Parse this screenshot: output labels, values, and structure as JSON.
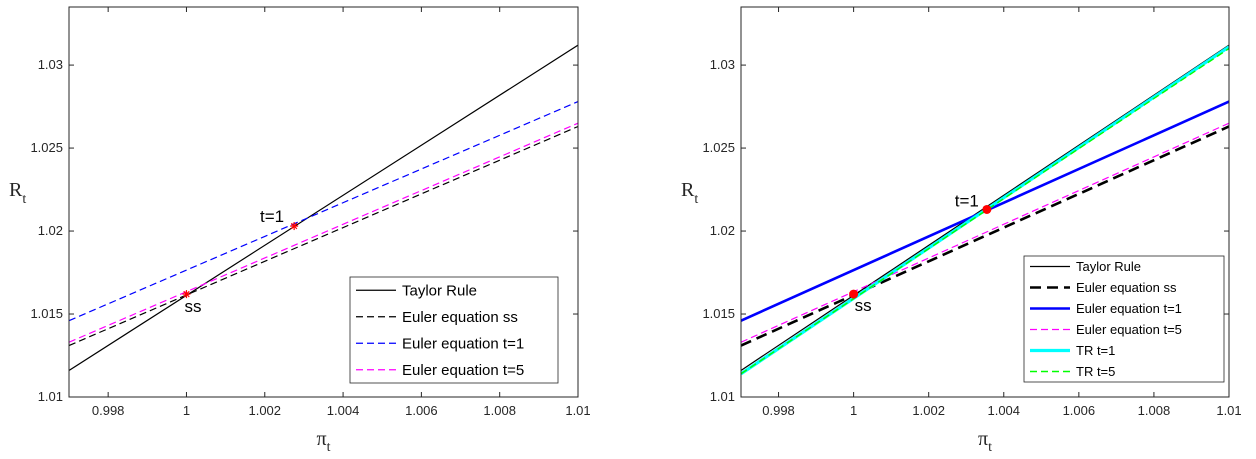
{
  "chart_data": [
    {
      "type": "line",
      "xlabel": "π",
      "xlabel_sub": "t",
      "ylabel": "R",
      "ylabel_sub": "t",
      "xlim": [
        0.997,
        1.01
      ],
      "ylim": [
        1.01,
        1.0335
      ],
      "xticks": [
        0.998,
        1,
        1.002,
        1.004,
        1.006,
        1.008,
        1.01
      ],
      "xtick_labels": [
        "0.998",
        "1",
        "1.002",
        "1.004",
        "1.006",
        "1.008",
        "1.01"
      ],
      "yticks": [
        1.01,
        1.015,
        1.02,
        1.025,
        1.03
      ],
      "ytick_labels": [
        "1.01",
        "1.015",
        "1.02",
        "1.025",
        "1.03"
      ],
      "legend_position": "bottom-right",
      "series": [
        {
          "name": "Taylor Rule",
          "x": [
            0.997,
            1.01
          ],
          "y": [
            1.0116,
            1.0312
          ],
          "color": "#000000",
          "style": "solid",
          "width": 1.2
        },
        {
          "name": "Euler equation ss",
          "x": [
            0.997,
            1.01
          ],
          "y": [
            1.0131,
            1.0263
          ],
          "color": "#000000",
          "style": "dashed",
          "width": 1.2
        },
        {
          "name": "Euler equation t=1",
          "x": [
            0.997,
            1.01
          ],
          "y": [
            1.0146,
            1.0278
          ],
          "color": "#0000ff",
          "style": "dashed",
          "width": 1.2
        },
        {
          "name": "Euler equation t=5",
          "x": [
            0.997,
            1.01
          ],
          "y": [
            1.0133,
            1.0265
          ],
          "color": "#ff00ff",
          "style": "dashed",
          "width": 1.2
        }
      ],
      "points": [
        {
          "label": "ss",
          "x": 1.0,
          "y": 1.0162,
          "color": "#ff0000",
          "marker": "star"
        },
        {
          "label": "t=1",
          "x": 1.00275,
          "y": 1.0203,
          "color": "#ff0000",
          "marker": "star"
        }
      ]
    },
    {
      "type": "line",
      "xlabel": "π",
      "xlabel_sub": "t",
      "ylabel": "R",
      "ylabel_sub": "t",
      "xlim": [
        0.997,
        1.01
      ],
      "ylim": [
        1.01,
        1.0335
      ],
      "xticks": [
        0.998,
        1,
        1.002,
        1.004,
        1.006,
        1.008,
        1.01
      ],
      "xtick_labels": [
        "0.998",
        "1",
        "1.002",
        "1.004",
        "1.006",
        "1.008",
        "1.01"
      ],
      "yticks": [
        1.01,
        1.015,
        1.02,
        1.025,
        1.03
      ],
      "ytick_labels": [
        "1.01",
        "1.015",
        "1.02",
        "1.025",
        "1.03"
      ],
      "legend_position": "bottom-right",
      "series": [
        {
          "name": "Taylor Rule",
          "x": [
            0.997,
            1.01
          ],
          "y": [
            1.0116,
            1.0312
          ],
          "color": "#000000",
          "style": "solid",
          "width": 1.2
        },
        {
          "name": "Euler equation ss",
          "x": [
            0.997,
            1.01
          ],
          "y": [
            1.0131,
            1.0263
          ],
          "color": "#000000",
          "style": "dashed",
          "width": 2.6
        },
        {
          "name": "Euler equation t=1",
          "x": [
            0.997,
            1.01
          ],
          "y": [
            1.0146,
            1.0278
          ],
          "color": "#0000ff",
          "style": "solid",
          "width": 2.6
        },
        {
          "name": "Euler equation t=5",
          "x": [
            0.997,
            1.01
          ],
          "y": [
            1.0133,
            1.0265
          ],
          "color": "#ff00ff",
          "style": "dashed",
          "width": 1.2
        },
        {
          "name": "TR t=1",
          "x": [
            0.997,
            1.01
          ],
          "y": [
            1.0114,
            1.0311
          ],
          "color": "#00ffff",
          "style": "solid",
          "width": 3.2
        },
        {
          "name": "TR t=5",
          "x": [
            0.997,
            1.01
          ],
          "y": [
            1.0114,
            1.031
          ],
          "color": "#00ff00",
          "style": "dashed",
          "width": 1.4
        }
      ],
      "points": [
        {
          "label": "ss",
          "x": 1.0,
          "y": 1.0162,
          "color": "#ff0000",
          "marker": "dot"
        },
        {
          "label": "t=1",
          "x": 1.00355,
          "y": 1.0213,
          "color": "#ff0000",
          "marker": "dot"
        }
      ]
    }
  ]
}
